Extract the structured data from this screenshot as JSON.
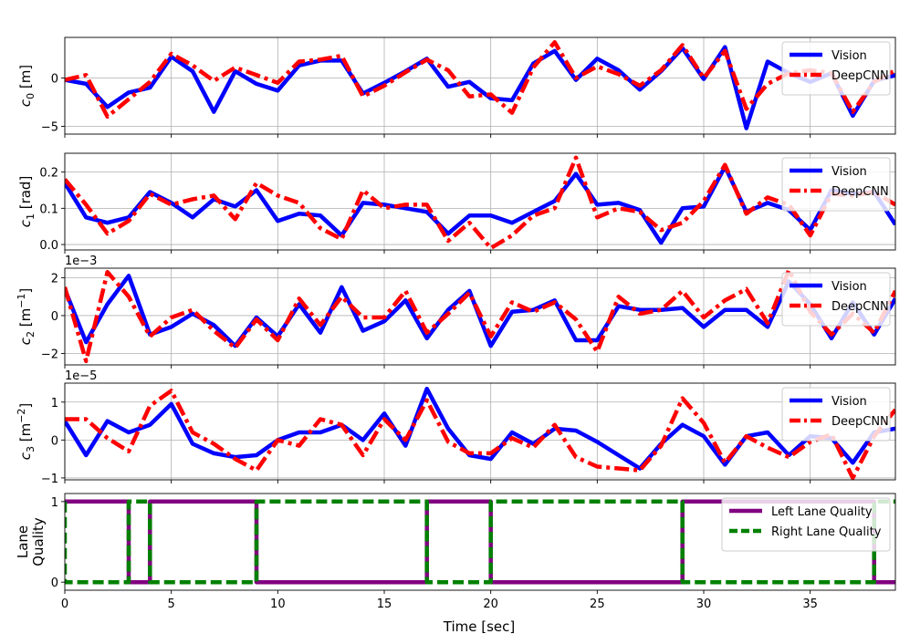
{
  "chart_data": [
    {
      "type": "line",
      "ylabel_base": "c",
      "ylabel_sub": "0",
      "ylabel_unit": " [m]",
      "ylim": [
        -5.8,
        4.2
      ],
      "yticks": [
        -5,
        0
      ],
      "ytick_labels": [
        "−5",
        "0"
      ],
      "grid": true,
      "legend_position": "top-right",
      "series": [
        {
          "name": "Vision",
          "color": "#0000ff",
          "style": "solid",
          "x": [
            0,
            1,
            2,
            3,
            4,
            5,
            6,
            7,
            8,
            9,
            10,
            11,
            12,
            13,
            14,
            15,
            16,
            17,
            18,
            19,
            20,
            21,
            22,
            23,
            24,
            25,
            26,
            27,
            28,
            29,
            30,
            31,
            32,
            33,
            34,
            35,
            36,
            37,
            38,
            39
          ],
          "y": [
            -0.2,
            -0.6,
            -3.0,
            -1.5,
            -1.0,
            2.2,
            0.7,
            -3.5,
            0.7,
            -0.6,
            -1.3,
            1.3,
            1.8,
            1.8,
            -1.6,
            -0.5,
            0.7,
            2.0,
            -0.9,
            -0.4,
            -2.1,
            -2.3,
            1.5,
            2.8,
            -0.2,
            2.0,
            0.8,
            -1.2,
            0.7,
            3.1,
            -0.1,
            3.2,
            -5.2,
            1.7,
            0.5,
            -0.4,
            0.5,
            -3.9,
            -0.3,
            0.3
          ]
        },
        {
          "name": "DeepCNN",
          "color": "#ff0000",
          "style": "dashdot",
          "x": [
            0,
            1,
            2,
            3,
            4,
            5,
            6,
            7,
            8,
            9,
            10,
            11,
            12,
            13,
            14,
            15,
            16,
            17,
            18,
            19,
            20,
            21,
            22,
            23,
            24,
            25,
            26,
            27,
            28,
            29,
            30,
            31,
            32,
            33,
            34,
            35,
            36,
            37,
            38,
            39
          ],
          "y": [
            -0.2,
            0.3,
            -4.0,
            -2.2,
            -0.4,
            2.5,
            1.3,
            -0.3,
            1.1,
            0.3,
            -0.5,
            1.7,
            1.9,
            2.3,
            -1.9,
            -0.8,
            0.6,
            1.9,
            0.8,
            -1.9,
            -1.7,
            -3.6,
            1.1,
            3.7,
            0.0,
            1.2,
            0.4,
            -0.8,
            0.8,
            3.4,
            0.0,
            2.8,
            -3.2,
            -0.6,
            0.5,
            0.8,
            0.5,
            -3.5,
            -0.4,
            0.8
          ]
        }
      ]
    },
    {
      "type": "line",
      "ylabel_base": "c",
      "ylabel_sub": "1",
      "ylabel_unit": " [rad]",
      "ylim": [
        -0.015,
        0.252
      ],
      "yticks": [
        0.0,
        0.1,
        0.2
      ],
      "ytick_labels": [
        "0.0",
        "0.1",
        "0.2"
      ],
      "grid": true,
      "legend_position": "top-right",
      "series": [
        {
          "name": "Vision",
          "color": "#0000ff",
          "style": "solid",
          "x": [
            0,
            1,
            2,
            3,
            4,
            5,
            6,
            7,
            8,
            9,
            10,
            11,
            12,
            13,
            14,
            15,
            16,
            17,
            18,
            19,
            20,
            21,
            22,
            23,
            24,
            25,
            26,
            27,
            28,
            29,
            30,
            31,
            32,
            33,
            34,
            35,
            36,
            37,
            38,
            39
          ],
          "y": [
            0.17,
            0.075,
            0.06,
            0.075,
            0.145,
            0.115,
            0.075,
            0.125,
            0.105,
            0.15,
            0.065,
            0.085,
            0.08,
            0.025,
            0.115,
            0.11,
            0.1,
            0.09,
            0.03,
            0.08,
            0.08,
            0.06,
            0.09,
            0.12,
            0.195,
            0.11,
            0.115,
            0.095,
            0.005,
            0.1,
            0.105,
            0.215,
            0.09,
            0.115,
            0.095,
            0.04,
            0.15,
            0.14,
            0.145,
            0.055
          ]
        },
        {
          "name": "DeepCNN",
          "color": "#ff0000",
          "style": "dashdot",
          "x": [
            0,
            1,
            2,
            3,
            4,
            5,
            6,
            7,
            8,
            9,
            10,
            11,
            12,
            13,
            14,
            15,
            16,
            17,
            18,
            19,
            20,
            21,
            22,
            23,
            24,
            25,
            26,
            27,
            28,
            29,
            30,
            31,
            32,
            33,
            34,
            35,
            36,
            37,
            38,
            39
          ],
          "y": [
            0.18,
            0.11,
            0.03,
            0.065,
            0.14,
            0.11,
            0.125,
            0.135,
            0.07,
            0.17,
            0.135,
            0.115,
            0.045,
            0.015,
            0.15,
            0.1,
            0.11,
            0.11,
            0.01,
            0.06,
            -0.01,
            0.025,
            0.08,
            0.1,
            0.24,
            0.075,
            0.1,
            0.09,
            0.04,
            0.06,
            0.12,
            0.22,
            0.085,
            0.13,
            0.11,
            0.025,
            0.14,
            0.135,
            0.145,
            0.11
          ]
        }
      ]
    },
    {
      "type": "line",
      "offset_text": "1e−3",
      "ylabel_base": "c",
      "ylabel_sub": "2",
      "ylabel_unit": " [m",
      "ylabel_sup": "−1",
      "ylabel_end": "]",
      "ylim": [
        -2.6,
        2.5
      ],
      "yticks": [
        -2,
        0,
        2
      ],
      "ytick_labels": [
        "−2",
        "0",
        "2"
      ],
      "grid": true,
      "legend_position": "top-right",
      "series": [
        {
          "name": "Vision",
          "color": "#0000ff",
          "style": "solid",
          "x": [
            0,
            1,
            2,
            3,
            4,
            5,
            6,
            7,
            8,
            9,
            10,
            11,
            12,
            13,
            14,
            15,
            16,
            17,
            18,
            19,
            20,
            21,
            22,
            23,
            24,
            25,
            26,
            27,
            28,
            29,
            30,
            31,
            32,
            33,
            34,
            35,
            36,
            37,
            38,
            39
          ],
          "y": [
            1.4,
            -1.4,
            0.6,
            2.1,
            -1.0,
            -0.6,
            0.1,
            -0.5,
            -1.6,
            -0.1,
            -1.1,
            0.6,
            -0.9,
            1.5,
            -0.8,
            -0.3,
            0.8,
            -1.2,
            0.3,
            1.3,
            -1.6,
            0.2,
            0.3,
            0.8,
            -1.3,
            -1.3,
            0.5,
            0.3,
            0.3,
            0.4,
            -0.6,
            0.3,
            0.3,
            -0.6,
            1.8,
            0.6,
            -1.2,
            0.7,
            -1.0,
            0.9
          ]
        },
        {
          "name": "DeepCNN",
          "color": "#ff0000",
          "style": "dashdot",
          "x": [
            0,
            1,
            2,
            3,
            4,
            5,
            6,
            7,
            8,
            9,
            10,
            11,
            12,
            13,
            14,
            15,
            16,
            17,
            18,
            19,
            20,
            21,
            22,
            23,
            24,
            25,
            26,
            27,
            28,
            29,
            30,
            31,
            32,
            33,
            34,
            35,
            36,
            37,
            38,
            39
          ],
          "y": [
            1.5,
            -2.4,
            2.3,
            1.0,
            -1.1,
            -0.1,
            0.3,
            -0.8,
            -1.7,
            -0.2,
            -1.3,
            0.9,
            -0.5,
            1.0,
            -0.1,
            -0.1,
            1.3,
            -0.9,
            0.1,
            1.2,
            -1.1,
            0.7,
            0.2,
            0.7,
            -0.2,
            -1.9,
            1.0,
            0.1,
            0.3,
            1.3,
            -0.1,
            0.8,
            1.4,
            -0.4,
            2.4,
            0.2,
            -1.0,
            0.1,
            -0.9,
            1.3
          ]
        }
      ]
    },
    {
      "type": "line",
      "offset_text": "1e−5",
      "ylabel_base": "c",
      "ylabel_sub": "3",
      "ylabel_unit": " [m",
      "ylabel_sup": "−2",
      "ylabel_end": "]",
      "ylim": [
        -1.05,
        1.5
      ],
      "yticks": [
        -1,
        0,
        1
      ],
      "ytick_labels": [
        "−1",
        "0",
        "1"
      ],
      "grid": true,
      "legend_position": "top-right",
      "series": [
        {
          "name": "Vision",
          "color": "#0000ff",
          "style": "solid",
          "x": [
            0,
            1,
            2,
            3,
            4,
            5,
            6,
            7,
            8,
            9,
            10,
            11,
            12,
            13,
            14,
            15,
            16,
            17,
            18,
            19,
            20,
            21,
            22,
            23,
            24,
            25,
            26,
            27,
            28,
            29,
            30,
            31,
            32,
            33,
            34,
            35,
            36,
            37,
            38,
            39
          ],
          "y": [
            0.5,
            -0.4,
            0.5,
            0.2,
            0.4,
            0.95,
            -0.1,
            -0.35,
            -0.45,
            -0.4,
            0.0,
            0.2,
            0.2,
            0.4,
            0.0,
            0.7,
            -0.15,
            1.35,
            0.3,
            -0.4,
            -0.5,
            0.2,
            -0.1,
            0.3,
            0.25,
            -0.05,
            -0.4,
            -0.75,
            -0.1,
            0.4,
            0.1,
            -0.65,
            0.1,
            0.2,
            -0.4,
            0.1,
            0.05,
            -0.6,
            0.2,
            0.3
          ]
        },
        {
          "name": "DeepCNN",
          "color": "#ff0000",
          "style": "dashdot",
          "x": [
            0,
            1,
            2,
            3,
            4,
            5,
            6,
            7,
            8,
            9,
            10,
            11,
            12,
            13,
            14,
            15,
            16,
            17,
            18,
            19,
            20,
            21,
            22,
            23,
            24,
            25,
            26,
            27,
            28,
            29,
            30,
            31,
            32,
            33,
            34,
            35,
            36,
            37,
            38,
            39
          ],
          "y": [
            0.55,
            0.55,
            0.05,
            -0.3,
            0.9,
            1.3,
            0.2,
            -0.1,
            -0.5,
            -0.8,
            0.0,
            -0.15,
            0.55,
            0.4,
            -0.4,
            0.55,
            0.0,
            1.05,
            -0.05,
            -0.35,
            -0.35,
            0.05,
            -0.2,
            0.4,
            -0.45,
            -0.7,
            -0.75,
            -0.8,
            -0.15,
            1.1,
            0.45,
            -0.6,
            0.1,
            -0.2,
            -0.45,
            -0.05,
            0.15,
            -1.0,
            0.1,
            0.8
          ]
        }
      ]
    },
    {
      "type": "line",
      "ylabel_lines": [
        "Lane",
        "Quality"
      ],
      "ylim": [
        -0.1,
        1.1
      ],
      "yticks": [
        0,
        1
      ],
      "ytick_labels": [
        "0",
        "1"
      ],
      "grid": false,
      "legend_position": "top-right",
      "step": true,
      "series": [
        {
          "name": "Left Lane Quality",
          "color": "#800080",
          "style": "solid",
          "x": [
            0,
            3,
            3,
            4,
            4,
            9,
            9,
            17,
            17,
            20,
            20,
            29,
            29,
            38,
            38,
            39
          ],
          "y": [
            1,
            1,
            0,
            0,
            1,
            1,
            0,
            0,
            1,
            1,
            0,
            0,
            1,
            1,
            0,
            0
          ]
        },
        {
          "name": "Right Lane Quality",
          "color": "#008000",
          "style": "dashed",
          "x": [
            0,
            0,
            3,
            3,
            4,
            4,
            9,
            9,
            17,
            17,
            20,
            20,
            29,
            29,
            38,
            38,
            39
          ],
          "y": [
            1,
            0,
            0,
            1,
            1,
            0,
            0,
            1,
            1,
            0,
            0,
            1,
            1,
            0,
            0,
            1,
            1
          ]
        }
      ]
    }
  ],
  "x_axis": {
    "label": "Time [sec]",
    "xlim": [
      0,
      39
    ],
    "ticks": [
      0,
      5,
      10,
      15,
      20,
      25,
      30,
      35
    ],
    "tick_labels": [
      "0",
      "5",
      "10",
      "15",
      "20",
      "25",
      "30",
      "35"
    ]
  }
}
